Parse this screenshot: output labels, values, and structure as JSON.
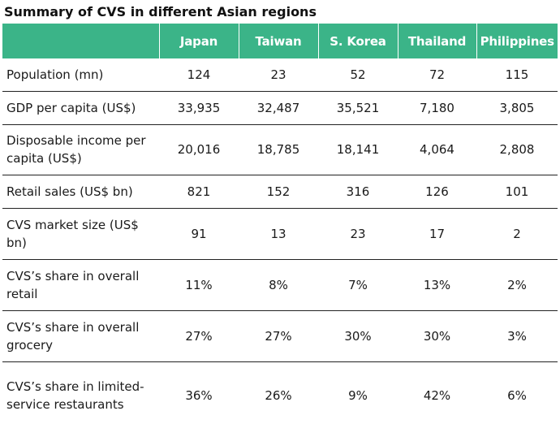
{
  "title": "Summary of CVS in different Asian regions",
  "table": {
    "columns": [
      "",
      "Japan",
      "Taiwan",
      "S. Korea",
      "Thailand",
      "Philippines"
    ],
    "rows": [
      {
        "label": "Population (mn)",
        "values": [
          "124",
          "23",
          "52",
          "72",
          "115"
        ]
      },
      {
        "label": "GDP per capita (US$)",
        "values": [
          "33,935",
          "32,487",
          "35,521",
          "7,180",
          "3,805"
        ]
      },
      {
        "label": "Disposable income per capita (US$)",
        "values": [
          "20,016",
          "18,785",
          "18,141",
          "4,064",
          "2,808"
        ]
      },
      {
        "label": "Retail sales (US$ bn)",
        "values": [
          "821",
          "152",
          "316",
          "126",
          "101"
        ]
      },
      {
        "label": "CVS market size (US$ bn)",
        "values": [
          "91",
          "13",
          "23",
          "17",
          "2"
        ]
      },
      {
        "label": "CVS’s share in overall retail",
        "values": [
          "11%",
          "8%",
          "7%",
          "13%",
          "2%"
        ]
      },
      {
        "label": "CVS’s share in overall grocery",
        "values": [
          "27%",
          "27%",
          "30%",
          "30%",
          "3%"
        ]
      },
      {
        "label": "CVS’s share in limited-service restaurants",
        "values": [
          "36%",
          "26%",
          "9%",
          "42%",
          "6%"
        ]
      }
    ]
  },
  "colors": {
    "header_bg": "#3bb488",
    "header_text": "#ffffff",
    "rule": "#222222"
  }
}
